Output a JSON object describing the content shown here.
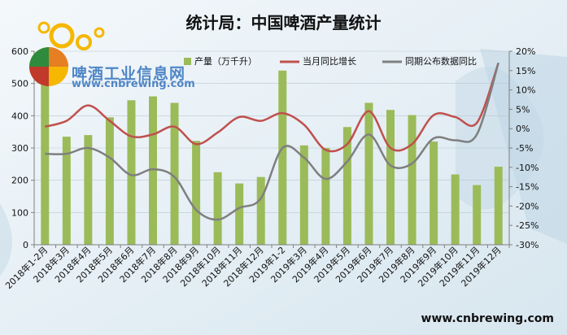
{
  "chart_data": {
    "type": "bar",
    "title": "统计局：中国啤酒产量统计",
    "categories": [
      "2018年1-2月",
      "2018年3月",
      "2018年4月",
      "2018年5月",
      "2018年6月",
      "2018年7月",
      "2018年8月",
      "2018年9月",
      "2018年10月",
      "2018年11月",
      "2018年12月",
      "2019年1-2",
      "2019年3月",
      "2019年4月",
      "2019年5月",
      "2019年6月",
      "2019年7月",
      "2019年8月",
      "2019年9月",
      "2019年10月",
      "2019年11月",
      "2019年12月"
    ],
    "series": [
      {
        "name": "产量（万千升）",
        "type": "bar",
        "axis": "left",
        "color": "#9bbb59",
        "values": [
          565,
          335,
          340,
          395,
          448,
          460,
          440,
          322,
          225,
          190,
          210,
          540,
          308,
          300,
          365,
          440,
          418,
          402,
          320,
          218,
          185,
          242
        ]
      },
      {
        "name": "当月同比增长",
        "type": "line",
        "axis": "right",
        "color": "#c0504d",
        "values": [
          0.5,
          2.0,
          6.0,
          2.0,
          -2.0,
          -1.5,
          0.5,
          -4.0,
          -1.0,
          3.0,
          2.0,
          4.0,
          1.0,
          -5.5,
          -4.0,
          4.5,
          -5.0,
          -4.0,
          3.5,
          3.0,
          1.5,
          17.0
        ]
      },
      {
        "name": "同期公布数据同比",
        "type": "line",
        "axis": "right",
        "color": "#7f7f7f",
        "values": [
          -6.5,
          -6.5,
          -5.0,
          -7.5,
          -12.0,
          -10.5,
          -12.5,
          -21.0,
          -23.5,
          -20.5,
          -18.0,
          -5.0,
          -7.5,
          -13.0,
          -8.5,
          -1.5,
          -9.5,
          -9.0,
          -2.5,
          -3.0,
          -1.5,
          17.0
        ]
      }
    ],
    "y_left": {
      "min": 0,
      "max": 600,
      "ticks": [
        "0",
        "100",
        "200",
        "300",
        "400",
        "500",
        "600"
      ]
    },
    "y_right": {
      "min": -30,
      "max": 20,
      "ticks": [
        "-30%",
        "-25%",
        "-20%",
        "-15%",
        "-10%",
        "-5%",
        "0%",
        "5%",
        "10%",
        "15%",
        "20%"
      ]
    },
    "legend_position": "top"
  },
  "logo": {
    "name": "啤酒工业信息网",
    "url": "www.cnbrewing.com"
  },
  "footer": {
    "url": "www.cnbrewing.com"
  }
}
